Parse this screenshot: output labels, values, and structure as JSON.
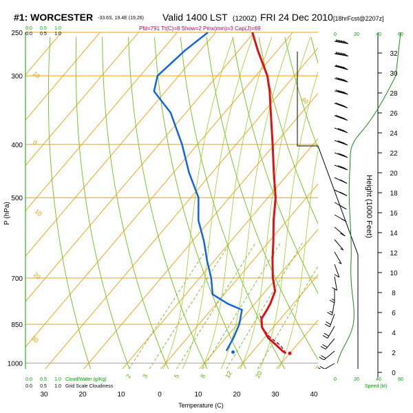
{
  "chart_data": {
    "type": "skew-t",
    "title": {
      "station": "#1: WORCESTER",
      "coords": "-33.6S, 19.4E (19,26)",
      "valid": "Valid 1400 LST",
      "utc": "(1200Z)",
      "date": "FRI 24 Dec 2010",
      "forecast": "[18hrFcst@2207z]"
    },
    "indices": "Pfd=791 Tt(C)=8 Show=2 Pmx(mm)=3 Cap(J)=69",
    "xlabel": "Temperature (C)",
    "ylabel": "P (hPa)",
    "right_ylabel": "Height (1000 Feet)",
    "temperature_ticks": [
      -30,
      -20,
      -10,
      0,
      10,
      20,
      30,
      40
    ],
    "temperature_tick_labels": [
      "30",
      "20",
      "10",
      "0",
      "10",
      "20",
      "30",
      "40"
    ],
    "pressure_ticks": [
      250,
      300,
      400,
      500,
      700,
      850,
      1000
    ],
    "height_ticks": [
      0,
      2,
      4,
      6,
      8,
      10,
      12,
      14,
      16,
      18,
      20,
      22,
      24,
      26,
      28,
      30,
      32
    ],
    "temperature_profile": {
      "name": "Temperature",
      "color": "#e01010",
      "points": [
        [
          29,
          960
        ],
        [
          27.5,
          950
        ],
        [
          25,
          930
        ],
        [
          21,
          900
        ],
        [
          17,
          860
        ],
        [
          15,
          830
        ],
        [
          14.5,
          800
        ],
        [
          14,
          780
        ],
        [
          12.5,
          740
        ],
        [
          9,
          700
        ],
        [
          5,
          650
        ],
        [
          1,
          600
        ],
        [
          -3.5,
          550
        ],
        [
          -8,
          500
        ],
        [
          -14,
          450
        ],
        [
          -20.5,
          400
        ],
        [
          -28,
          350
        ],
        [
          -33,
          320
        ],
        [
          -37,
          300
        ],
        [
          -45,
          270
        ],
        [
          -50.5,
          250
        ]
      ]
    },
    "dewpoint_profile": {
      "name": "Dewpoint",
      "color": "#1064e0",
      "points": [
        [
          13,
          950
        ],
        [
          12,
          900
        ],
        [
          10.5,
          850
        ],
        [
          8,
          800
        ],
        [
          3,
          780
        ],
        [
          -3,
          750
        ],
        [
          -7,
          700
        ],
        [
          -12,
          650
        ],
        [
          -17,
          600
        ],
        [
          -23,
          550
        ],
        [
          -28,
          500
        ],
        [
          -36,
          450
        ],
        [
          -44,
          400
        ],
        [
          -54,
          350
        ],
        [
          -63,
          320
        ],
        [
          -65.5,
          300
        ],
        [
          -64,
          270
        ],
        [
          -62,
          250
        ]
      ]
    },
    "surface_markers": [
      {
        "name": "Surface temperature",
        "temp": 30,
        "pressure": 960,
        "color": "#e01010"
      },
      {
        "name": "Surface dewpoint",
        "temp": 15,
        "pressure": 955,
        "color": "#1064e0"
      }
    ],
    "parcel_path": {
      "name": "Parcel",
      "color": "#8a1a5a",
      "points": [
        [
          29,
          960
        ],
        [
          26,
          930
        ],
        [
          21,
          895
        ],
        [
          17,
          860
        ],
        [
          14.5,
          825
        ],
        [
          14,
          820
        ]
      ]
    },
    "dry_adiabats_c": [
      -20,
      -10,
      0,
      10,
      20,
      30,
      40,
      50,
      60
    ],
    "dry_adiabat_labels": [
      "10",
      "0",
      "10",
      "20",
      "30",
      "40"
    ],
    "moist_adiabats_c": [
      0,
      5,
      10,
      15,
      20,
      25,
      30
    ],
    "mixing_ratios_gkg": [
      2,
      3,
      5,
      8,
      12,
      20
    ],
    "mixing_ratio_labels": [
      "2",
      "3",
      "5",
      "8",
      "12",
      "20"
    ],
    "winds_kt": {
      "note": "wind barbs, direction deg / speed kt",
      "barbs": [
        [
          280,
          45
        ],
        [
          280,
          45
        ],
        [
          285,
          45
        ],
        [
          285,
          40
        ],
        [
          285,
          40
        ],
        [
          290,
          40
        ],
        [
          290,
          40
        ],
        [
          290,
          35
        ],
        [
          290,
          35
        ],
        [
          290,
          30
        ],
        [
          290,
          30
        ],
        [
          295,
          25
        ],
        [
          295,
          25
        ],
        [
          300,
          20
        ],
        [
          300,
          15
        ],
        [
          310,
          10
        ],
        [
          320,
          8
        ],
        [
          330,
          8
        ],
        [
          340,
          10
        ],
        [
          350,
          12
        ],
        [
          360,
          15
        ],
        [
          10,
          18
        ],
        [
          20,
          20
        ],
        [
          30,
          20
        ],
        [
          40,
          22
        ],
        [
          50,
          22
        ],
        [
          60,
          22
        ]
      ]
    },
    "cloud_water": {
      "legend": "Cloud/Water (g/Kg)",
      "ticks": [
        "0.0",
        "0.5",
        "1.0"
      ]
    },
    "grid_scale_cloudiness": {
      "legend": "Grid Scale Cloudiness",
      "ticks": [
        "0.0",
        "0.5",
        "1.0"
      ]
    },
    "wind_speed_axis": {
      "label": "Speed (kt)",
      "ticks_top": [
        "0",
        "20",
        "40",
        "60"
      ],
      "ticks_bottom": [
        "0",
        "20",
        "40",
        "60"
      ]
    }
  }
}
